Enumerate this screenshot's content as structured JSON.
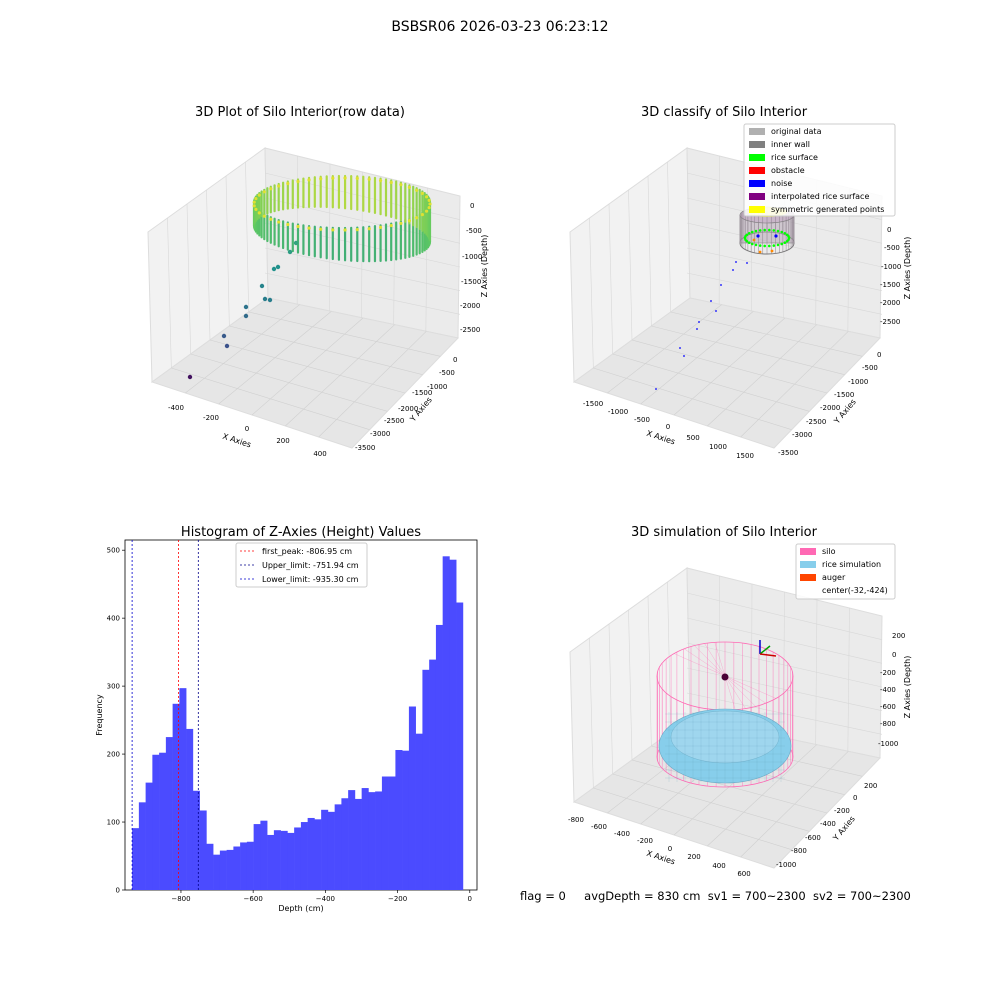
{
  "suptitle": "BSBSR06 2026-03-23 06:23:12",
  "chart_data": [
    {
      "type": "scatter3d",
      "title": "3D Plot of Silo Interior(row data)",
      "xlabel": "X Axies",
      "ylabel": "Y Axies",
      "zlabel": "Z Axies (Depth)",
      "xticks": [
        "-400",
        "-200",
        "0",
        "200",
        "400"
      ],
      "yticks": [
        "0",
        "-500",
        "-1000",
        "-1500",
        "-2000",
        "-2500",
        "-3000",
        "-3500"
      ],
      "zticks": [
        "0",
        "-500",
        "-1000",
        "-1500",
        "-2000",
        "-2500"
      ],
      "colormap": "viridis"
    },
    {
      "type": "scatter3d",
      "title": "3D classify of Silo Interior",
      "xlabel": "X Axies",
      "ylabel": "Y Axies",
      "zlabel": "Z Axies (Depth)",
      "xticks": [
        "-1500",
        "-1000",
        "-500",
        "0",
        "500",
        "1000",
        "1500"
      ],
      "yticks": [
        "0",
        "-500",
        "-1000",
        "-1500",
        "-2000",
        "-2500",
        "-3000",
        "-3500"
      ],
      "zticks": [
        "0",
        "-500",
        "-1000",
        "-1500",
        "-2000",
        "-2500"
      ],
      "legend_position": "top-right",
      "legend": [
        {
          "label": "original data",
          "color": "#b0b0b0"
        },
        {
          "label": "inner wall",
          "color": "#808080"
        },
        {
          "label": "rice surface",
          "color": "#00ff00"
        },
        {
          "label": "obstacle",
          "color": "#ff0000"
        },
        {
          "label": "noise",
          "color": "#0000ff"
        },
        {
          "label": "interpolated rice surface",
          "color": "#800080"
        },
        {
          "label": "symmetric generated points",
          "color": "#ffff00"
        }
      ]
    },
    {
      "type": "bar",
      "title": "Histogram of Z-Axies (Height) Values",
      "xlabel": "Depth (cm)",
      "ylabel": "Frequency",
      "xlim": [
        -955,
        20
      ],
      "ylim": [
        0,
        515
      ],
      "xticks": [
        -800,
        -600,
        -400,
        -200,
        0
      ],
      "yticks": [
        0,
        100,
        200,
        300,
        400,
        500
      ],
      "bar_color": "#4b4bff",
      "bins_start": -935.3,
      "bin_width": 18.7,
      "values": [
        91,
        129,
        158,
        199,
        202,
        225,
        274,
        297,
        237,
        146,
        117,
        68,
        52,
        58,
        59,
        64,
        70,
        71,
        97,
        102,
        81,
        88,
        87,
        84,
        92,
        100,
        106,
        104,
        118,
        115,
        126,
        135,
        147,
        134,
        150,
        144,
        145,
        167,
        167,
        206,
        205,
        270,
        230,
        324,
        339,
        390,
        491,
        486,
        423
      ],
      "lines": [
        {
          "label": "first_peak: -806.95 cm",
          "x": -806.95,
          "color": "#ff0000"
        },
        {
          "label": "Upper_limit: -751.94 cm",
          "x": -751.94,
          "color": "#00008b"
        },
        {
          "label": "Lower_limit: -935.30 cm",
          "x": -935.3,
          "color": "#0000cd"
        }
      ],
      "legend_position": "top-center"
    },
    {
      "type": "surface3d",
      "title": "3D simulation of Silo Interior",
      "xlabel": "X Axies",
      "ylabel": "Y Axies",
      "zlabel": "Z Axies (Depth)",
      "xticks": [
        "-800",
        "-600",
        "-400",
        "-200",
        "0",
        "200",
        "400",
        "600"
      ],
      "yticks": [
        "200",
        "0",
        "-200",
        "-400",
        "-600",
        "-800",
        "-1000"
      ],
      "zticks": [
        "200",
        "0",
        "-200",
        "-400",
        "-600",
        "-800",
        "-1000"
      ],
      "legend_position": "top-right",
      "legend": [
        {
          "label": "silo",
          "color": "#ff69b4"
        },
        {
          "label": "rice simulation",
          "color": "#87ceeb"
        },
        {
          "label": "auger",
          "color": "#ff4500"
        },
        {
          "label": "center(-32,-424)",
          "color": ""
        }
      ]
    }
  ],
  "info": {
    "flag": "flag = 0",
    "avg_depth": "avgDepth = 830 cm",
    "sv1": "sv1 = 700~2300",
    "sv2": "sv2 = 700~2300"
  }
}
